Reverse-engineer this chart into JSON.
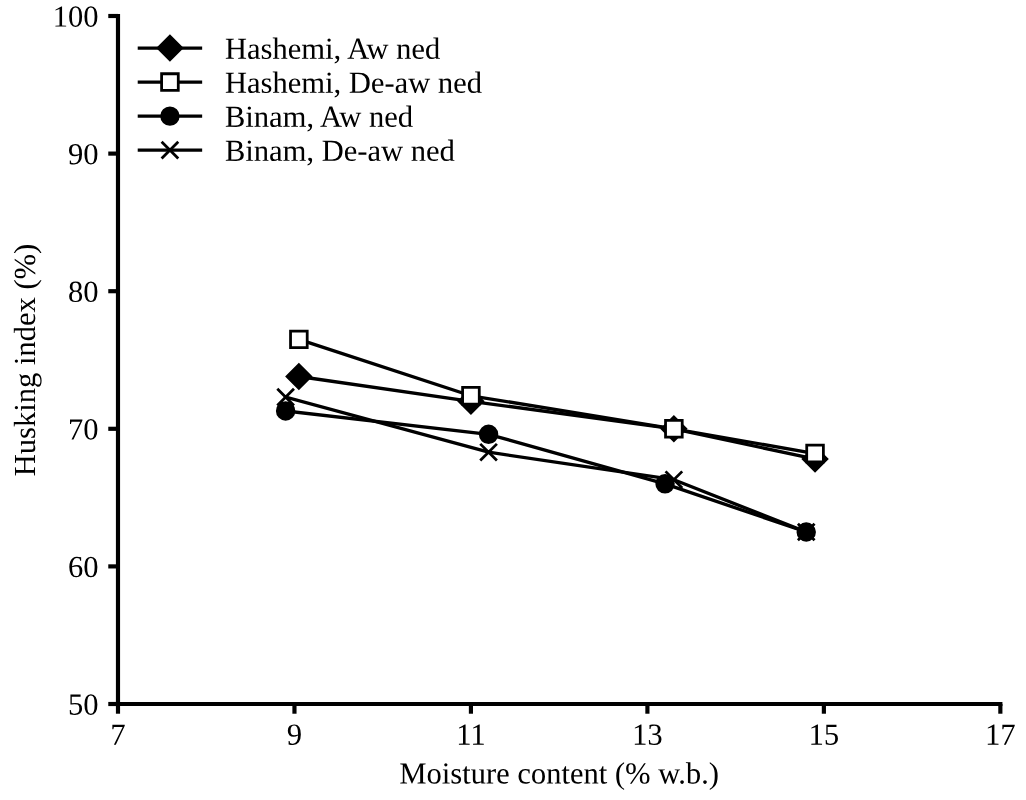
{
  "chart_data": {
    "type": "line",
    "xlabel": "Moisture content (% w.b.)",
    "ylabel": "Husking index (%)",
    "series": [
      {
        "name": "Hashemi, Aw ned",
        "color": "#000000",
        "marker": "diamond",
        "x": [
          9.05,
          11.0,
          13.3,
          14.9
        ],
        "values": [
          73.8,
          72.0,
          70.0,
          67.8
        ]
      },
      {
        "name": "Hashemi, De-aw ned",
        "color": "#000000",
        "marker": "square",
        "x": [
          9.05,
          11.0,
          13.3,
          14.9
        ],
        "values": [
          76.5,
          72.4,
          70.0,
          68.2
        ]
      },
      {
        "name": "Binam, Aw ned",
        "color": "#000000",
        "marker": "circle",
        "x": [
          8.9,
          11.2,
          13.2,
          14.8
        ],
        "values": [
          71.3,
          69.6,
          66.0,
          62.5
        ]
      },
      {
        "name": "Binam, De-aw ned",
        "color": "#000000",
        "marker": "cross",
        "x": [
          8.9,
          11.2,
          13.3,
          14.8
        ],
        "values": [
          72.3,
          68.3,
          66.3,
          62.5
        ]
      }
    ],
    "xlim": [
      7,
      17
    ],
    "xticks": [
      7,
      9,
      11,
      13,
      15,
      17
    ],
    "ylim": [
      50,
      100
    ],
    "yticks": [
      50,
      60,
      70,
      80,
      90,
      100
    ],
    "grid": false,
    "legend": "top left",
    "line_style": "solid"
  }
}
